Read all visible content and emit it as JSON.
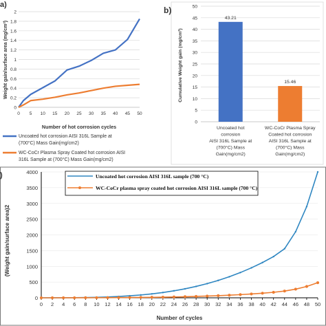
{
  "chart_data": [
    {
      "panel_label": "a)",
      "type": "line",
      "xlabel": "Number of hot corrosion cycles",
      "ylabel": "Weight gain/surface area (mg/cm²)",
      "x": [
        0,
        2,
        5,
        10,
        15,
        20,
        25,
        30,
        35,
        40,
        45,
        50
      ],
      "xticks": [
        "0",
        "5",
        "10",
        "15",
        "20",
        "25",
        "30",
        "35",
        "40",
        "45",
        "50"
      ],
      "xlim": [
        0,
        50
      ],
      "ylim": [
        0,
        2
      ],
      "yticks": [
        "0",
        "0.2",
        "0.4",
        "0.6",
        "0.8",
        "1",
        "1.2",
        "1.4",
        "1.6",
        "1.8",
        "2"
      ],
      "series": [
        {
          "name": "Uncoated hot corrosion AISI 316L Sample at (700°C) Mass Gain(mg/cm2)",
          "color": "#4472c4",
          "values": [
            0,
            0.14,
            0.27,
            0.41,
            0.55,
            0.78,
            0.86,
            0.98,
            1.13,
            1.2,
            1.42,
            1.85
          ]
        },
        {
          "name": "WC-CoCr Plasma Spray Coated hot corrosion AISI 316L Sample at (700°C) Mass Gain(mg/cm2)",
          "color": "#ed7d31",
          "values": [
            0,
            0.05,
            0.14,
            0.17,
            0.21,
            0.26,
            0.3,
            0.35,
            0.4,
            0.44,
            0.46,
            0.48
          ]
        }
      ]
    },
    {
      "panel_label": "b)",
      "type": "bar",
      "ylabel": "Cumulative Weight gain (mg/cm²)",
      "ylim": [
        0,
        50
      ],
      "yticks": [
        "0",
        "5",
        "10",
        "15",
        "20",
        "25",
        "30",
        "35",
        "40",
        "45",
        "50"
      ],
      "categories": [
        [
          "Uncoated hot",
          "corrosion",
          "AISI 316L Sample at",
          "(700°C) Mass",
          "Gain(mg/cm2)"
        ],
        [
          "WC-CoCr Plasma Spray",
          "Coated hot corrosion",
          "AISI 316L Sample at",
          "(700°C) Mass",
          "Gain(mg/cm2)"
        ]
      ],
      "values": [
        43.21,
        15.46
      ],
      "value_labels": [
        "43.21",
        "15.46"
      ],
      "colors": [
        "#4472c4",
        "#ed7d31"
      ]
    },
    {
      "panel_label": ")",
      "type": "line",
      "xlabel": "Number of cycles",
      "ylabel": "(Weight gain/surface area)2",
      "xlim": [
        0,
        50
      ],
      "xticks": [
        "0",
        "2",
        "4",
        "6",
        "8",
        "10",
        "12",
        "14",
        "16",
        "18",
        "20",
        "22",
        "24",
        "26",
        "28",
        "30",
        "32",
        "34",
        "36",
        "38",
        "40",
        "42",
        "44",
        "46",
        "48",
        "50"
      ],
      "ylim": [
        0,
        4000
      ],
      "yticks": [
        "0",
        "500",
        "1000",
        "1500",
        "2000",
        "2500",
        "3000",
        "3500",
        "4000"
      ],
      "series": [
        {
          "name": "Uncoated  hot corrosion AISI 316L sample (700 °C)",
          "color": "#2e86c1",
          "x": [
            0,
            2,
            4,
            6,
            8,
            10,
            12,
            14,
            16,
            18,
            20,
            22,
            24,
            26,
            28,
            30,
            32,
            34,
            36,
            38,
            40,
            42,
            44,
            46,
            48,
            50
          ],
          "values": [
            0,
            1,
            2,
            5,
            9,
            16,
            27,
            43,
            64,
            90,
            125,
            168,
            222,
            286,
            362,
            450,
            552,
            669,
            802,
            952,
            1120,
            1310,
            1560,
            2100,
            2900,
            4000
          ]
        },
        {
          "name": "WC-CoCr  plasma spray coated hot corrosion AISI 316L sample (700 °C)",
          "color": "#ed7d31",
          "x": [
            0,
            2,
            4,
            6,
            8,
            10,
            12,
            14,
            16,
            18,
            20,
            22,
            24,
            26,
            28,
            30,
            32,
            34,
            36,
            38,
            40,
            42,
            44,
            46,
            48,
            50
          ],
          "values": [
            0,
            0,
            1,
            1,
            2,
            3,
            4,
            6,
            9,
            12,
            16,
            21,
            27,
            35,
            44,
            55,
            68,
            83,
            101,
            122,
            146,
            175,
            215,
            275,
            360,
            480
          ]
        }
      ]
    }
  ]
}
